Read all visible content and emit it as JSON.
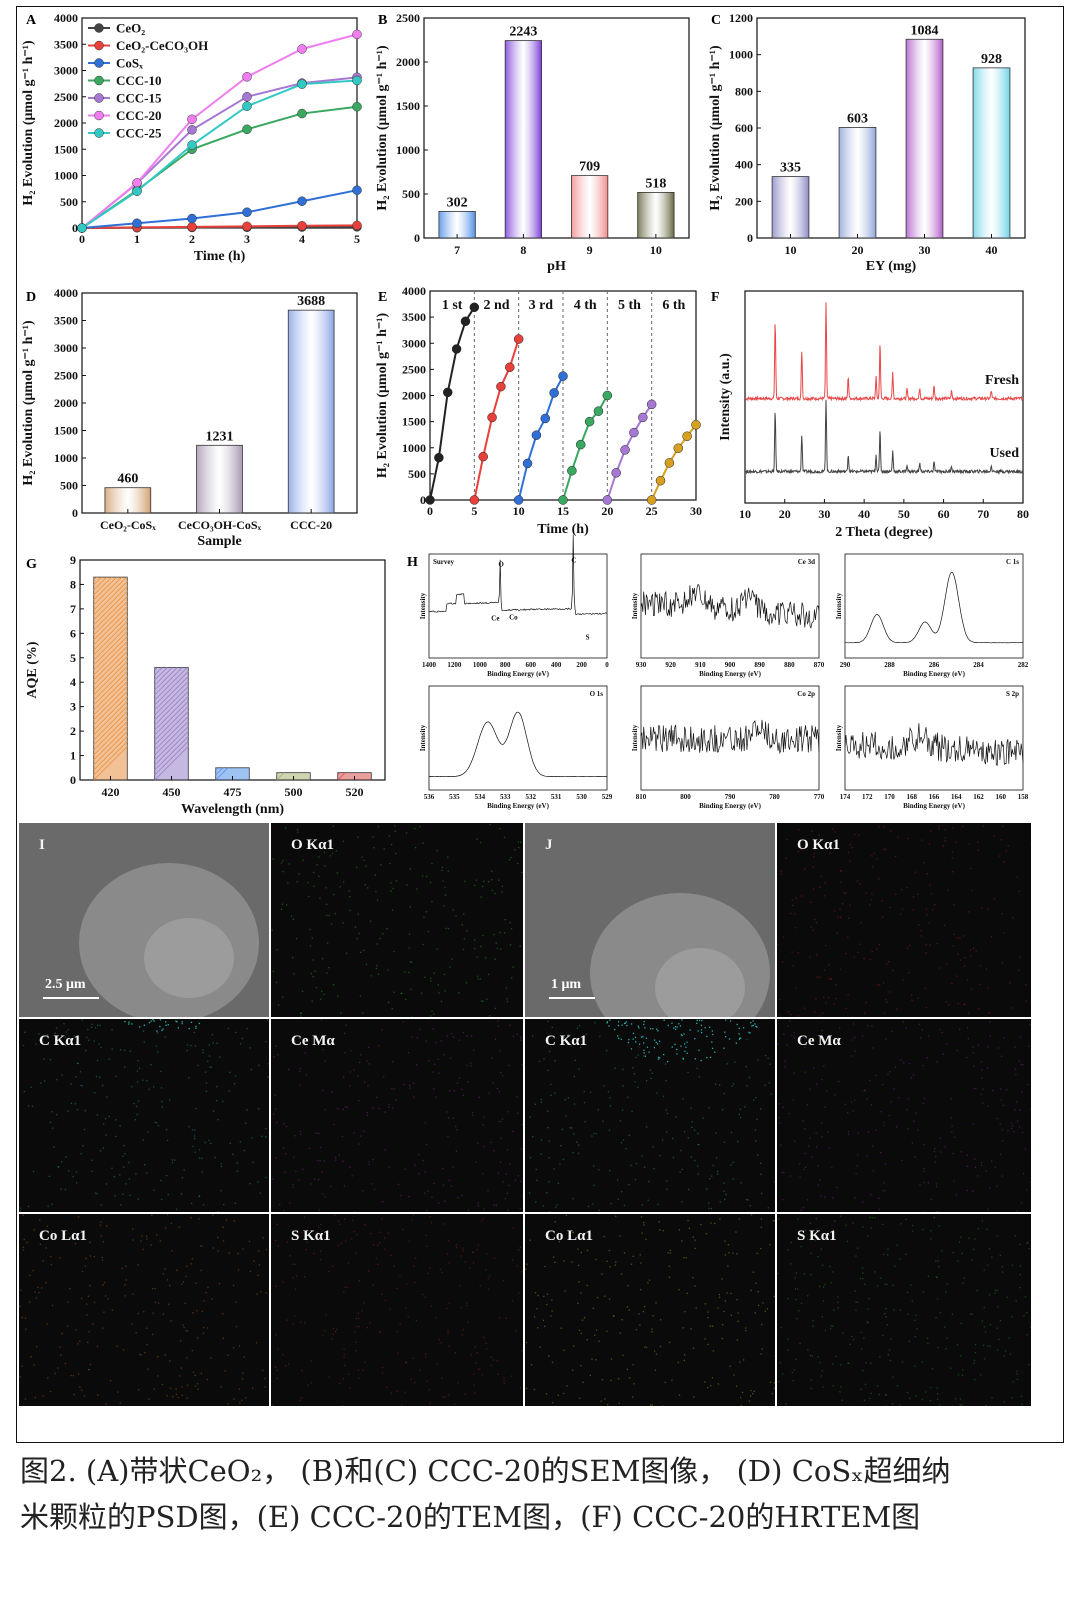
{
  "caption": {
    "line1": "图2. (A)带状CeO₂， (B)和(C) CCC-20的SEM图像， (D) CoSₓ超细纳",
    "line2": "米颗粒的PSD图，(E) CCC-20的TEM图，(F) CCC-20的HRTEM图"
  },
  "chart_data": [
    {
      "id": "A",
      "letter": "A",
      "type": "line",
      "x": [
        0,
        1,
        2,
        3,
        4,
        5
      ],
      "xlabel": "Time (h)",
      "ylabel": "H₂ Evolution (μmol g⁻¹ h⁻¹)",
      "xlim": [
        0,
        5
      ],
      "ylim": [
        0,
        4000
      ],
      "yticks": [
        0,
        500,
        1000,
        1500,
        2000,
        2500,
        3000,
        3500,
        4000
      ],
      "legend_position": "top-left",
      "series": [
        {
          "name": "CeO₂",
          "color": "#444444",
          "values": [
            0,
            5,
            10,
            14,
            18,
            22
          ]
        },
        {
          "name": "CeO₂-CeCO₃OH",
          "color": "#e8403a",
          "values": [
            0,
            12,
            22,
            32,
            42,
            50
          ]
        },
        {
          "name": "CoSₓ",
          "color": "#2f6fd6",
          "values": [
            0,
            90,
            180,
            300,
            510,
            720
          ]
        },
        {
          "name": "CCC-10",
          "color": "#3aa861",
          "values": [
            0,
            720,
            1500,
            1880,
            2180,
            2310
          ]
        },
        {
          "name": "CCC-15",
          "color": "#a678d4",
          "values": [
            0,
            850,
            1870,
            2500,
            2760,
            2870
          ]
        },
        {
          "name": "CCC-20",
          "color": "#f07ef0",
          "values": [
            0,
            860,
            2070,
            2880,
            3410,
            3688
          ]
        },
        {
          "name": "CCC-25",
          "color": "#32c9c4",
          "values": [
            0,
            700,
            1580,
            2320,
            2740,
            2810
          ]
        }
      ]
    },
    {
      "id": "B",
      "letter": "B",
      "type": "bar",
      "categories": [
        "7",
        "8",
        "9",
        "10"
      ],
      "values": [
        302,
        2243,
        709,
        518
      ],
      "colors": [
        "#4f8fe8",
        "#7a3fd8",
        "#f08c8c",
        "#666640"
      ],
      "xlabel": "pH",
      "ylabel": "H₂ Evolution (μmol g⁻¹ h⁻¹)",
      "ylim": [
        0,
        2500
      ],
      "yticks": [
        0,
        500,
        1000,
        1500,
        2000,
        2500
      ]
    },
    {
      "id": "C",
      "letter": "C",
      "type": "bar",
      "categories": [
        "10",
        "20",
        "30",
        "40"
      ],
      "values": [
        335,
        603,
        1084,
        928
      ],
      "colors": [
        "#8a8ac4",
        "#8fa4d8",
        "#b05cc8",
        "#6fd3e8"
      ],
      "xlabel": "EY (mg)",
      "ylabel": "H₂ Evolution (μmol g⁻¹ h⁻¹)",
      "ylim": [
        0,
        1200
      ],
      "yticks": [
        0,
        200,
        400,
        600,
        800,
        1000,
        1200
      ]
    },
    {
      "id": "D",
      "letter": "D",
      "type": "bar",
      "categories": [
        "CeO₂-CoSₓ",
        "CeCO₃OH-CoSₓ",
        "CCC-20"
      ],
      "values": [
        460,
        1231,
        3688
      ],
      "colors": [
        "#d4a070",
        "#a898b4",
        "#8aa4e6"
      ],
      "xlabel": "Sample",
      "ylabel": "H₂ Evolution (μmol g⁻¹ h⁻¹)",
      "ylim": [
        0,
        4000
      ],
      "yticks": [
        0,
        500,
        1000,
        1500,
        2000,
        2500,
        3000,
        3500,
        4000
      ]
    },
    {
      "id": "E",
      "letter": "E",
      "type": "line",
      "xlabel": "Time (h)",
      "ylabel": "H₂ Evolution (μmol g⁻¹ h⁻¹)",
      "xlim": [
        0,
        30
      ],
      "ylim": [
        0,
        4000
      ],
      "xticks": [
        0,
        5,
        10,
        15,
        20,
        25,
        30
      ],
      "yticks": [
        0,
        500,
        1000,
        1500,
        2000,
        2500,
        3000,
        3500,
        4000
      ],
      "cycle_labels": [
        "1 st",
        "2 nd",
        "3 rd",
        "4 th",
        "5 th",
        "6 th"
      ],
      "series": [
        {
          "name": "1 st",
          "color": "#222222",
          "x": [
            0,
            1,
            2,
            3,
            4,
            5
          ],
          "values": [
            0,
            810,
            2060,
            2890,
            3420,
            3688
          ]
        },
        {
          "name": "2 nd",
          "color": "#e8403a",
          "x": [
            5,
            6,
            7,
            8,
            9,
            10
          ],
          "values": [
            0,
            830,
            1580,
            2170,
            2540,
            3080
          ]
        },
        {
          "name": "3 rd",
          "color": "#2f6fd6",
          "x": [
            10,
            11,
            12,
            13,
            14,
            15
          ],
          "values": [
            0,
            700,
            1240,
            1560,
            2050,
            2370
          ]
        },
        {
          "name": "4 th",
          "color": "#3aa861",
          "x": [
            15,
            16,
            17,
            18,
            19,
            20
          ],
          "values": [
            0,
            560,
            1060,
            1500,
            1700,
            2000
          ]
        },
        {
          "name": "5 th",
          "color": "#a678d4",
          "x": [
            20,
            21,
            22,
            23,
            24,
            25
          ],
          "values": [
            0,
            520,
            960,
            1290,
            1580,
            1830
          ]
        },
        {
          "name": "6 th",
          "color": "#d8a020",
          "x": [
            25,
            26,
            27,
            28,
            29,
            30
          ],
          "values": [
            0,
            370,
            710,
            990,
            1220,
            1440
          ]
        }
      ]
    },
    {
      "id": "F",
      "letter": "F",
      "type": "line",
      "xlabel": "2 Theta (degree)",
      "ylabel": "Intensity (a.u.)",
      "xlim": [
        10,
        80
      ],
      "xticks": [
        10,
        20,
        30,
        40,
        50,
        60,
        70,
        80
      ],
      "series": [
        {
          "name": "Fresh",
          "color": "#e84848"
        },
        {
          "name": "Used",
          "color": "#444444"
        }
      ],
      "peaks": [
        [
          17.6,
          1.0
        ],
        [
          24.3,
          0.62
        ],
        [
          30.4,
          1.22
        ],
        [
          36.0,
          0.28
        ],
        [
          43.0,
          0.28
        ],
        [
          44.0,
          0.72
        ],
        [
          47.2,
          0.34
        ],
        [
          50.8,
          0.12
        ],
        [
          54.0,
          0.14
        ],
        [
          57.6,
          0.16
        ],
        [
          62.0,
          0.1
        ],
        [
          72.0,
          0.1
        ]
      ]
    },
    {
      "id": "G",
      "letter": "G",
      "type": "bar",
      "categories": [
        "420",
        "450",
        "475",
        "500",
        "520"
      ],
      "values": [
        8.3,
        4.6,
        0.5,
        0.3,
        0.3
      ],
      "colors": [
        "#e89040",
        "#9880c8",
        "#4f8fe8",
        "#a8b070",
        "#d85050"
      ],
      "xlabel": "Wavelength (nm)",
      "ylabel": "AQE (%)",
      "ylim": [
        0,
        9
      ],
      "yticks": [
        0,
        1,
        2,
        3,
        4,
        5,
        6,
        7,
        8,
        9
      ]
    },
    {
      "id": "H",
      "letter": "H",
      "type": "line",
      "xlabel": "Binding Energy (eV)",
      "ylabel": "Intensity",
      "subplots": [
        {
          "title": "Survey",
          "xticks": [
            1400,
            1200,
            1000,
            800,
            600,
            400,
            200,
            0
          ],
          "peak_labels": [
            "O",
            "C",
            "Ce",
            "Co",
            "S"
          ]
        },
        {
          "title": "Ce 3d",
          "xticks": [
            930,
            920,
            910,
            900,
            890,
            880,
            870
          ]
        },
        {
          "title": "C 1s",
          "xticks": [
            290,
            288,
            286,
            284,
            282
          ]
        },
        {
          "title": "O 1s",
          "xticks": [
            536,
            535,
            534,
            533,
            532,
            531,
            530,
            529
          ]
        },
        {
          "title": "Co 2p",
          "xticks": [
            810,
            800,
            790,
            780,
            770
          ]
        },
        {
          "title": "S 2p",
          "xticks": [
            174,
            172,
            170,
            168,
            166,
            164,
            162,
            160,
            158
          ]
        }
      ]
    }
  ],
  "maps": {
    "I": [
      {
        "label": "I",
        "scale": "2.5 μm",
        "kind": "sem"
      },
      {
        "label": "O Kα1",
        "color": "#30d830"
      },
      {
        "label": "C Kα1",
        "color": "#30c8c8"
      },
      {
        "label": "Ce Mα",
        "color": "#c030c0"
      },
      {
        "label": "Co Lα1",
        "color": "#e08020"
      },
      {
        "label": "S Kα1",
        "color": "#c83020"
      }
    ],
    "J": [
      {
        "label": "J",
        "scale": "1 μm",
        "kind": "sem"
      },
      {
        "label": "O Kα1",
        "color": "#f02020"
      },
      {
        "label": "C Kα1",
        "color": "#30c8c8"
      },
      {
        "label": "Ce Mα",
        "color": "#b030c8"
      },
      {
        "label": "Co Lα1",
        "color": "#d8d020"
      },
      {
        "label": "S Kα1",
        "color": "#30b830"
      }
    ]
  }
}
